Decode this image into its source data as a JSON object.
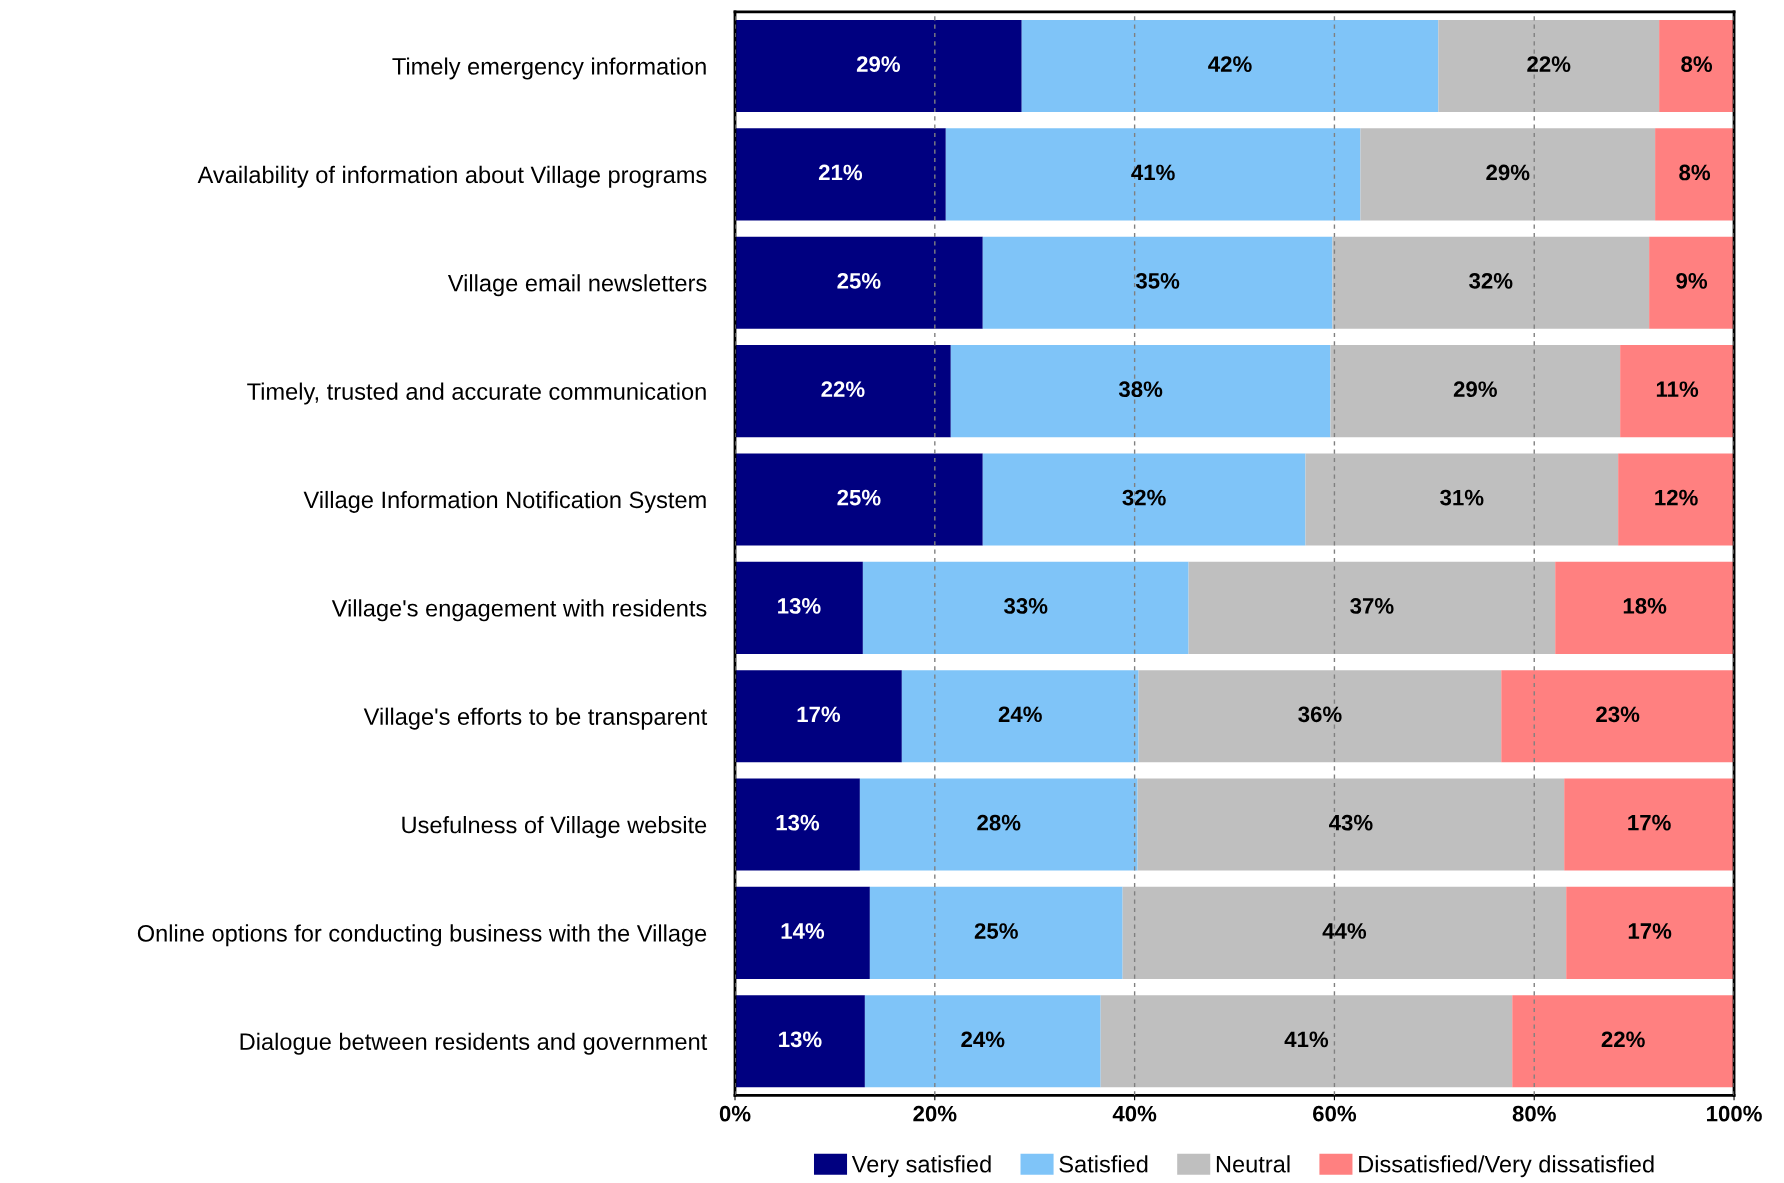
{
  "chart_data": {
    "type": "bar",
    "orientation": "horizontal",
    "stacked": true,
    "categories": [
      "Timely emergency information",
      "Availability of information about Village programs",
      "Village email newsletters",
      "Timely, trusted and accurate communication",
      "Village Information Notification System",
      "Village's engagement with residents",
      "Village's efforts to be transparent",
      "Usefulness of Village website",
      "Online options for conducting business with the Village",
      "Dialogue between residents and government"
    ],
    "series": [
      {
        "name": "Very satisfied",
        "color": "#000080",
        "values": [
          28.7,
          21.1,
          24.8,
          21.6,
          24.8,
          12.8,
          16.7,
          12.5,
          13.5,
          13.0
        ],
        "value_labels": [
          "29%",
          "21%",
          "25%",
          "22%",
          "25%",
          "13%",
          "17%",
          "13%",
          "14%",
          "13%"
        ]
      },
      {
        "name": "Satisfied",
        "color": "#7fc4f8",
        "values": [
          41.7,
          41.5,
          35.0,
          38.0,
          32.3,
          32.6,
          23.7,
          27.8,
          25.3,
          23.6
        ],
        "value_labels": [
          "42%",
          "41%",
          "35%",
          "38%",
          "32%",
          "33%",
          "24%",
          "28%",
          "25%",
          "24%"
        ]
      },
      {
        "name": "Neutral",
        "color": "#bfbfbf",
        "values": [
          22.1,
          29.5,
          31.7,
          29.0,
          31.3,
          36.7,
          36.3,
          42.7,
          44.4,
          41.2
        ],
        "value_labels": [
          "22%",
          "29%",
          "32%",
          "29%",
          "31%",
          "37%",
          "36%",
          "43%",
          "44%",
          "41%"
        ]
      },
      {
        "name": "Dissatisfied/Very dissatisfied",
        "color": "#ff8080",
        "values": [
          7.5,
          7.9,
          8.5,
          11.4,
          11.6,
          17.9,
          23.3,
          17.0,
          16.7,
          22.2
        ],
        "value_labels": [
          "8%",
          "8%",
          "9%",
          "11%",
          "12%",
          "18%",
          "23%",
          "17%",
          "17%",
          "22%"
        ]
      }
    ],
    "xlim": [
      0,
      100
    ],
    "xticks": [
      {
        "value": 0,
        "label": "0%"
      },
      {
        "value": 20,
        "label": "20%"
      },
      {
        "value": 40,
        "label": "40%"
      },
      {
        "value": 60,
        "label": "60%"
      },
      {
        "value": 80,
        "label": "80%"
      },
      {
        "value": 100,
        "label": "100%"
      }
    ],
    "grid": "x",
    "legend": "bottom"
  }
}
